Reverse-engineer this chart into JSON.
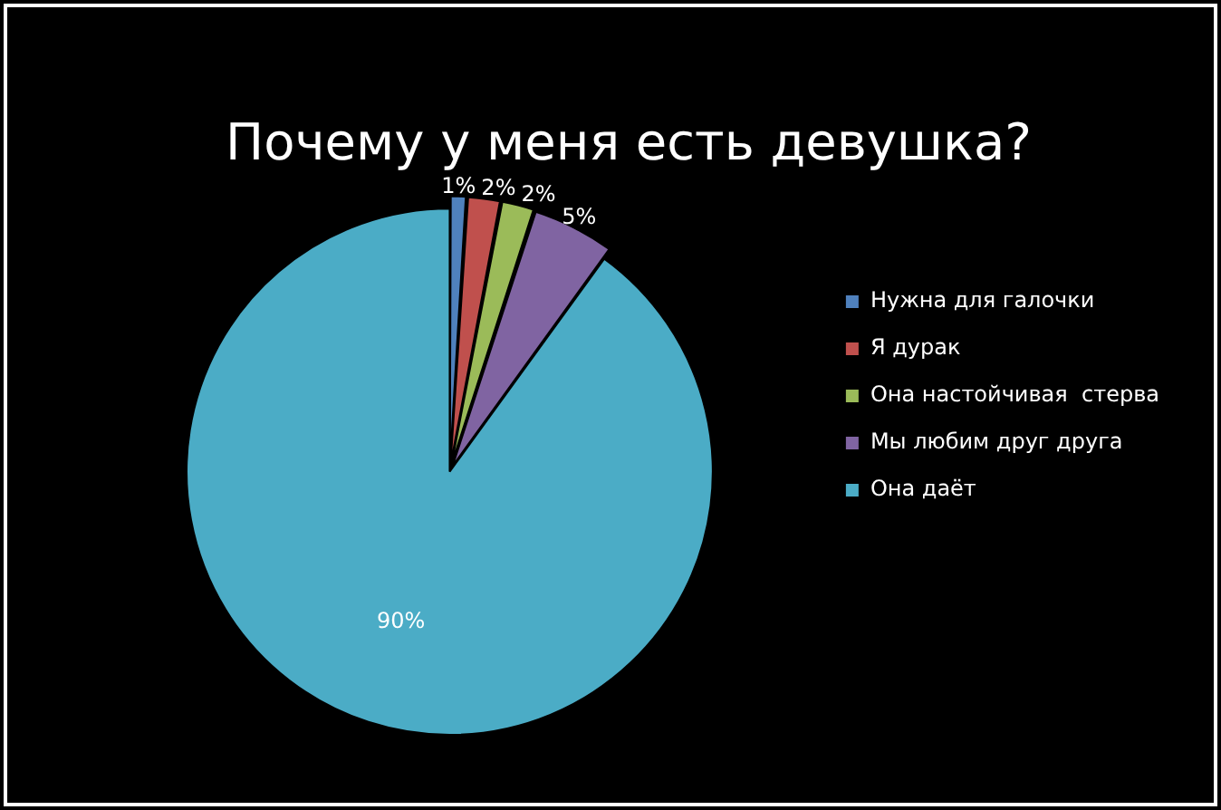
{
  "chart_data": {
    "type": "pie",
    "title": "Почему у меня есть девушка?",
    "categories": [
      "Нужна для галочки",
      "Я дурак",
      "Она настойчивая  стерва",
      "Мы любим друг друга",
      "Она даёт"
    ],
    "values": [
      1,
      2,
      2,
      5,
      90
    ],
    "colors": [
      "#4f81bd",
      "#c0504d",
      "#9bbb59",
      "#8064a2",
      "#4bacc6"
    ],
    "value_labels": [
      "1%",
      "2%",
      "2%",
      "5%",
      "90%"
    ],
    "legend": "right"
  }
}
